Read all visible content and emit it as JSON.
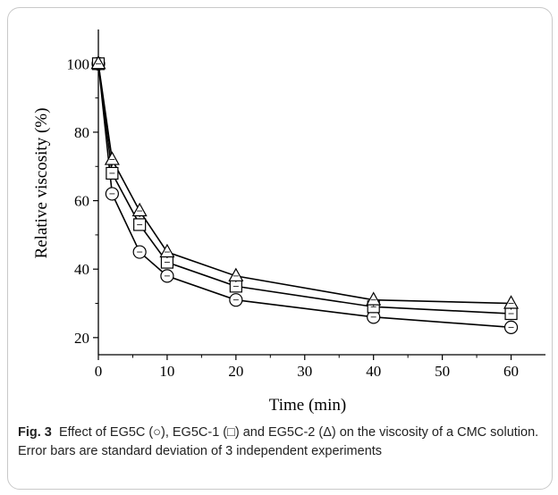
{
  "chart_data": {
    "type": "line",
    "xlabel": "Time (min)",
    "ylabel": "Relative viscosity (%)",
    "xlim": [
      0,
      65
    ],
    "ylim": [
      15,
      110
    ],
    "xticks": [
      0,
      10,
      20,
      30,
      40,
      50,
      60
    ],
    "yticks": [
      20,
      40,
      60,
      80,
      100
    ],
    "grid": false,
    "legend": "none",
    "x": [
      0,
      2,
      6,
      10,
      20,
      40,
      60
    ],
    "series": [
      {
        "marker": "circle",
        "values": [
          100,
          62,
          45,
          38,
          31,
          26,
          23
        ]
      },
      {
        "marker": "square",
        "values": [
          100,
          68,
          53,
          42,
          35,
          29,
          27
        ]
      },
      {
        "marker": "triangle",
        "values": [
          100,
          72,
          57,
          45,
          38,
          31,
          30
        ]
      }
    ],
    "colors": {
      "line": "#000000",
      "marker_fill": "#ffffff"
    }
  },
  "caption": {
    "label": "Fig. 3",
    "text": "Effect of EG5C (○), EG5C-1 (□) and EG5C-2 (Δ) on the viscosity of a CMC solution. Error bars are standard deviation of 3 independent experiments"
  }
}
